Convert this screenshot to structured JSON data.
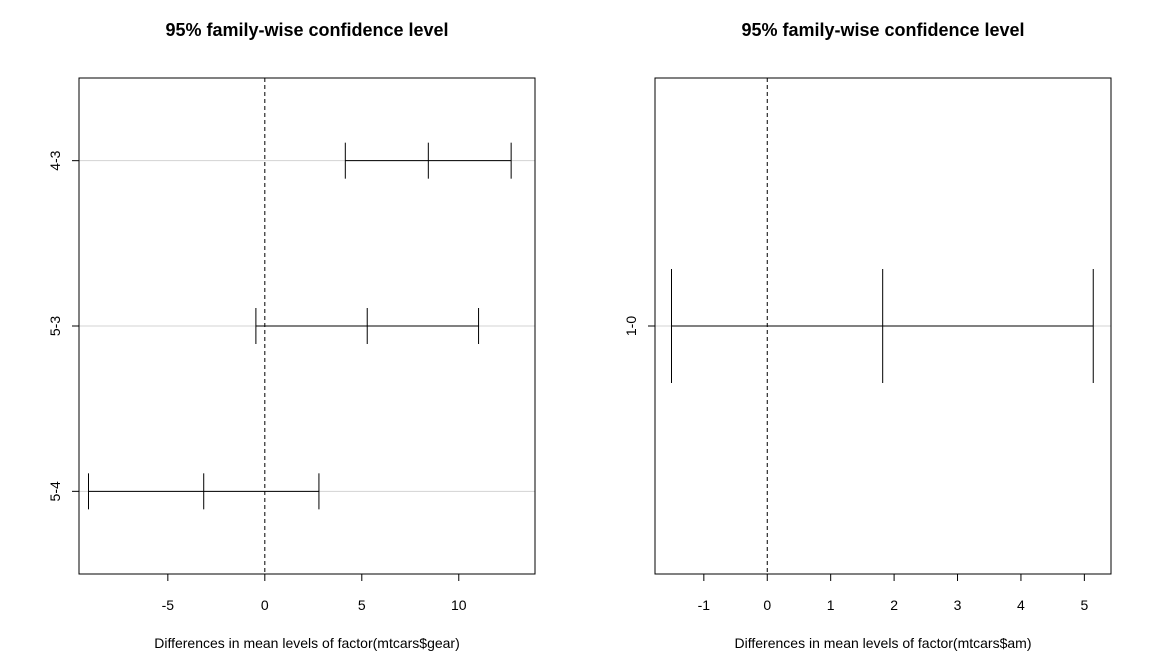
{
  "chart_data": [
    {
      "type": "errorbar",
      "title": "95% family-wise confidence level",
      "xlabel": "Differences in mean levels of factor(mtcars$gear)",
      "ylabel": "",
      "xlim": [
        -9.58,
        13.93
      ],
      "xticks": [
        -5,
        0,
        5,
        10
      ],
      "xtick_labels": [
        "-5",
        "0",
        "5",
        "10"
      ],
      "reference_line": 0,
      "grid": "horizontal",
      "comparisons": [
        {
          "label": "4-3",
          "diff": 8.43,
          "lwr": 4.15,
          "upr": 12.7
        },
        {
          "label": "5-3",
          "diff": 5.28,
          "lwr": -0.46,
          "upr": 11.02
        },
        {
          "label": "5-4",
          "diff": -3.15,
          "lwr": -9.09,
          "upr": 2.79
        }
      ]
    },
    {
      "type": "errorbar",
      "title": "95% family-wise confidence level",
      "xlabel": "Differences in mean levels of factor(mtcars$am)",
      "ylabel": "",
      "xlim": [
        -1.77,
        5.42
      ],
      "xticks": [
        -1,
        0,
        1,
        2,
        3,
        4,
        5
      ],
      "xtick_labels": [
        "-1",
        "0",
        "1",
        "2",
        "3",
        "4",
        "5"
      ],
      "reference_line": 0,
      "grid": "horizontal",
      "comparisons": [
        {
          "label": "1-0",
          "diff": 1.82,
          "lwr": -1.51,
          "upr": 5.14
        }
      ]
    }
  ]
}
